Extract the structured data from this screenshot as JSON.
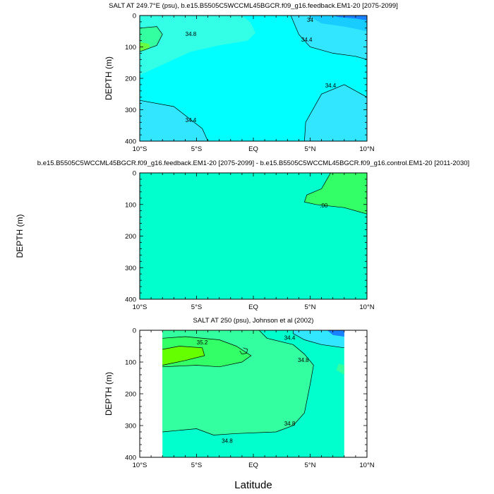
{
  "figure": {
    "xlabel": "Latitude",
    "colors": {
      "axis": "#000000",
      "contour": "#000000"
    }
  },
  "chart_data": [
    {
      "type": "heatmap",
      "title": "SALT AT 249.7°E (psu), b.e15.B5505C5WCCML45BGCR.f09_g16.feedback.EM1-20 [2075-2099]",
      "xlabel": "",
      "ylabel": "DEPTH (m)",
      "xlim": [
        -10,
        10
      ],
      "ylim": [
        400,
        0
      ],
      "xticks": [
        -10,
        -5,
        0,
        5,
        10
      ],
      "xtick_labels": [
        "10°S",
        "5°S",
        "EQ",
        "5°N",
        "10°N"
      ],
      "yticks": [
        0,
        100,
        200,
        300,
        400
      ],
      "ytick_labels": [
        "0",
        "100",
        "200",
        "300",
        "400"
      ],
      "background": "#00ffff",
      "regions": [
        {
          "name": "fresher-northeast",
          "color": "#33e6ff",
          "points": [
            [
              3.3,
              0
            ],
            [
              10,
              0
            ],
            [
              10,
              400
            ],
            [
              4.5,
              400
            ],
            [
              4.6,
              340
            ],
            [
              6,
              250
            ],
            [
              8,
              220
            ],
            [
              10,
              260
            ],
            [
              10,
              140
            ],
            [
              9,
              130
            ],
            [
              7,
              120
            ],
            [
              5,
              100
            ],
            [
              4,
              60
            ],
            [
              3.3,
              0
            ]
          ]
        },
        {
          "name": "saltier-west",
          "color": "#33ffe6",
          "points": [
            [
              -10,
              0
            ],
            [
              -1,
              0
            ],
            [
              -0.3,
              20
            ],
            [
              0.2,
              55
            ],
            [
              -0.5,
              80
            ],
            [
              -3,
              95
            ],
            [
              -5.5,
              115
            ],
            [
              -10,
              190
            ]
          ]
        },
        {
          "name": "fresh-southwest",
          "color": "#33e6ff",
          "points": [
            [
              -10,
              270
            ],
            [
              -7,
              290
            ],
            [
              -4.5,
              360
            ],
            [
              -4,
              400
            ],
            [
              -10,
              400
            ]
          ]
        },
        {
          "name": "fresher-corner",
          "color": "#19ccff",
          "points": [
            [
              4.8,
              0
            ],
            [
              10,
              0
            ],
            [
              10,
              50
            ],
            [
              8,
              35
            ],
            [
              6,
              25
            ],
            [
              4.8,
              0
            ]
          ]
        },
        {
          "name": "freshest-corner",
          "color": "#1980ff",
          "points": [
            [
              7,
              0
            ],
            [
              10,
              0
            ],
            [
              10,
              15
            ],
            [
              9,
              10
            ],
            [
              7.5,
              5
            ]
          ]
        },
        {
          "name": "salty-core",
          "color": "#33ffa0",
          "points": [
            [
              -10,
              40
            ],
            [
              -8.5,
              35
            ],
            [
              -8,
              60
            ],
            [
              -8.5,
              95
            ],
            [
              -9.5,
              110
            ],
            [
              -10,
              115
            ]
          ]
        },
        {
          "name": "saltiest-core",
          "color": "#66ff44",
          "points": [
            [
              -10,
              85
            ],
            [
              -9.2,
              90
            ],
            [
              -9.1,
              100
            ],
            [
              -9.5,
              110
            ],
            [
              -10,
              112
            ]
          ]
        }
      ],
      "contours": [
        {
          "points": [
            [
              3.3,
              0
            ],
            [
              4,
              60
            ],
            [
              5,
              100
            ],
            [
              7,
              120
            ],
            [
              9,
              130
            ],
            [
              10,
              140
            ]
          ]
        },
        {
          "points": [
            [
              4.5,
              400
            ],
            [
              4.6,
              340
            ],
            [
              6,
              250
            ],
            [
              8,
              220
            ],
            [
              10,
              260
            ]
          ]
        },
        {
          "points": [
            [
              -10,
              270
            ],
            [
              -7,
              290
            ],
            [
              -4.5,
              360
            ],
            [
              -4,
              400
            ]
          ]
        },
        {
          "points": [
            [
              -10,
              40
            ],
            [
              -8.5,
              35
            ],
            [
              -8,
              60
            ],
            [
              -8.5,
              95
            ],
            [
              -10,
              115
            ]
          ]
        }
      ],
      "contour_labels": [
        {
          "text": "34.8",
          "x": -5.5,
          "y": 60
        },
        {
          "text": "34.4",
          "x": 4.7,
          "y": 78
        },
        {
          "text": "34.4",
          "x": 6.8,
          "y": 225
        },
        {
          "text": "34.4",
          "x": -5.5,
          "y": 335
        },
        {
          "text": "34",
          "x": 5,
          "y": 15
        }
      ]
    },
    {
      "type": "heatmap",
      "title": "b.e15.B5505C5WCCML45BGCR.f09_g16.feedback.EM1-20 [2075-2099] - b.e15.B5505C5WCCML45BGCR.f09_g16.control.EM1-20 [2011-2030]",
      "xlabel": "",
      "ylabel": "DEPTH (m)",
      "xlim": [
        -10,
        10
      ],
      "ylim": [
        400,
        0
      ],
      "xticks": [
        -10,
        -5,
        0,
        5,
        10
      ],
      "xtick_labels": [
        "10°S",
        "5°S",
        "EQ",
        "5°N",
        "10°N"
      ],
      "yticks": [
        0,
        100,
        200,
        300,
        400
      ],
      "ytick_labels": [
        "0",
        "100",
        "200",
        "300",
        "400"
      ],
      "background": "#00ffcc",
      "regions": [
        {
          "name": "positive-anomaly",
          "color": "#33ff66",
          "points": [
            [
              6.8,
              0
            ],
            [
              10,
              0
            ],
            [
              10,
              130
            ],
            [
              8,
              110
            ],
            [
              5.5,
              100
            ],
            [
              4.5,
              92
            ],
            [
              4.7,
              70
            ],
            [
              6,
              50
            ],
            [
              6.8,
              0
            ]
          ]
        }
      ],
      "contours": [
        {
          "points": [
            [
              6.8,
              0
            ],
            [
              6,
              50
            ],
            [
              4.7,
              70
            ],
            [
              4.5,
              92
            ],
            [
              5.5,
              100
            ],
            [
              8,
              110
            ],
            [
              10,
              130
            ]
          ]
        }
      ],
      "contour_labels": [
        {
          "text": ".00",
          "x": 6.2,
          "y": 105
        }
      ]
    },
    {
      "type": "heatmap",
      "title": "SALT AT 250 (psu), Johnson et al (2002)",
      "xlabel": "",
      "ylabel": "DEPTH (m)",
      "xlim": [
        -10,
        10
      ],
      "ylim": [
        400,
        0
      ],
      "xticks": [
        -10,
        -5,
        0,
        5,
        10
      ],
      "xtick_labels": [
        "10°S",
        "5°S",
        "EQ",
        "5°N",
        "10°N"
      ],
      "yticks": [
        0,
        100,
        200,
        300,
        400
      ],
      "ytick_labels": [
        "0",
        "100",
        "200",
        "300",
        "400"
      ],
      "background": "#ffffff",
      "data_domain": [
        [
          -8,
          8
        ],
        [
          0,
          400
        ]
      ],
      "regions": [
        {
          "name": "domain-fill",
          "color": "#00ffcc",
          "points": [
            [
              -8,
              0
            ],
            [
              8,
              0
            ],
            [
              8,
              400
            ],
            [
              -8,
              400
            ]
          ]
        },
        {
          "name": "salty-band",
          "color": "#33ffa0",
          "points": [
            [
              -8,
              0
            ],
            [
              0.5,
              0
            ],
            [
              1.2,
              25
            ],
            [
              3.5,
              45
            ],
            [
              4.5,
              75
            ],
            [
              5.3,
              110
            ],
            [
              5,
              170
            ],
            [
              4.5,
              260
            ],
            [
              3.5,
              300
            ],
            [
              2,
              320
            ],
            [
              -1.5,
              325
            ],
            [
              -3.5,
              330
            ],
            [
              -5,
              310
            ],
            [
              -8,
              320
            ]
          ]
        },
        {
          "name": "saltier-core",
          "color": "#33ff66",
          "points": [
            [
              -8,
              25
            ],
            [
              -6,
              20
            ],
            [
              -3,
              30
            ],
            [
              -1.5,
              50
            ],
            [
              -0.2,
              80
            ],
            [
              -1,
              100
            ],
            [
              -3,
              115
            ],
            [
              -5,
              110
            ],
            [
              -8,
              115
            ]
          ]
        },
        {
          "name": "saltiest-core",
          "color": "#66ff00",
          "points": [
            [
              -8,
              60
            ],
            [
              -6.5,
              50
            ],
            [
              -4.5,
              55
            ],
            [
              -4.3,
              80
            ],
            [
              -6,
              95
            ],
            [
              -8,
              110
            ]
          ]
        },
        {
          "name": "fresher-band",
          "color": "#33e6ff",
          "points": [
            [
              3.5,
              0
            ],
            [
              8,
              0
            ],
            [
              8,
              55
            ],
            [
              6,
              45
            ],
            [
              4.5,
              30
            ],
            [
              3.5,
              10
            ]
          ]
        },
        {
          "name": "freshest-corner",
          "color": "#1980ff",
          "points": [
            [
              6.5,
              0
            ],
            [
              8,
              0
            ],
            [
              8,
              20
            ],
            [
              7,
              15
            ]
          ]
        },
        {
          "name": "salty-eddy-north",
          "color": "#33ffa0",
          "points": [
            [
              7.5,
              105
            ],
            [
              8,
              110
            ],
            [
              8,
              140
            ],
            [
              7.3,
              125
            ]
          ]
        }
      ],
      "contours": [
        {
          "points": [
            [
              -8,
              320
            ],
            [
              -5,
              310
            ],
            [
              -3.5,
              330
            ],
            [
              -1.5,
              325
            ],
            [
              2,
              320
            ],
            [
              3.5,
              300
            ],
            [
              4.5,
              260
            ],
            [
              5,
              170
            ],
            [
              5.3,
              110
            ],
            [
              4.5,
              75
            ],
            [
              3.5,
              45
            ],
            [
              1.2,
              25
            ],
            [
              0.5,
              0
            ]
          ]
        },
        {
          "points": [
            [
              -8,
              25
            ],
            [
              -6,
              20
            ],
            [
              -3,
              30
            ],
            [
              -1.5,
              50
            ],
            [
              -0.2,
              80
            ],
            [
              -1,
              100
            ],
            [
              -3,
              115
            ],
            [
              -5,
              110
            ],
            [
              -8,
              115
            ]
          ]
        },
        {
          "points": [
            [
              -8,
              60
            ],
            [
              -6.5,
              50
            ],
            [
              -4.5,
              55
            ],
            [
              -4.3,
              80
            ],
            [
              -6,
              95
            ],
            [
              -8,
              110
            ]
          ]
        },
        {
          "points": [
            [
              3.5,
              0
            ],
            [
              3.5,
              10
            ],
            [
              4.5,
              30
            ],
            [
              6,
              45
            ],
            [
              8,
              55
            ]
          ]
        },
        {
          "points": [
            [
              -0.9,
              55
            ],
            [
              -0.5,
              60
            ],
            [
              -0.6,
              72
            ],
            [
              -1,
              75
            ],
            [
              -1.2,
              65
            ]
          ]
        }
      ],
      "contour_labels": [
        {
          "text": "35.2",
          "x": -4.5,
          "y": 40
        },
        {
          "text": "34.4",
          "x": 3.2,
          "y": 25
        },
        {
          "text": "34.8",
          "x": 4.4,
          "y": 95
        },
        {
          "text": "34.8",
          "x": 3.2,
          "y": 295
        },
        {
          "text": "34.8",
          "x": -2.3,
          "y": 350
        }
      ]
    }
  ]
}
